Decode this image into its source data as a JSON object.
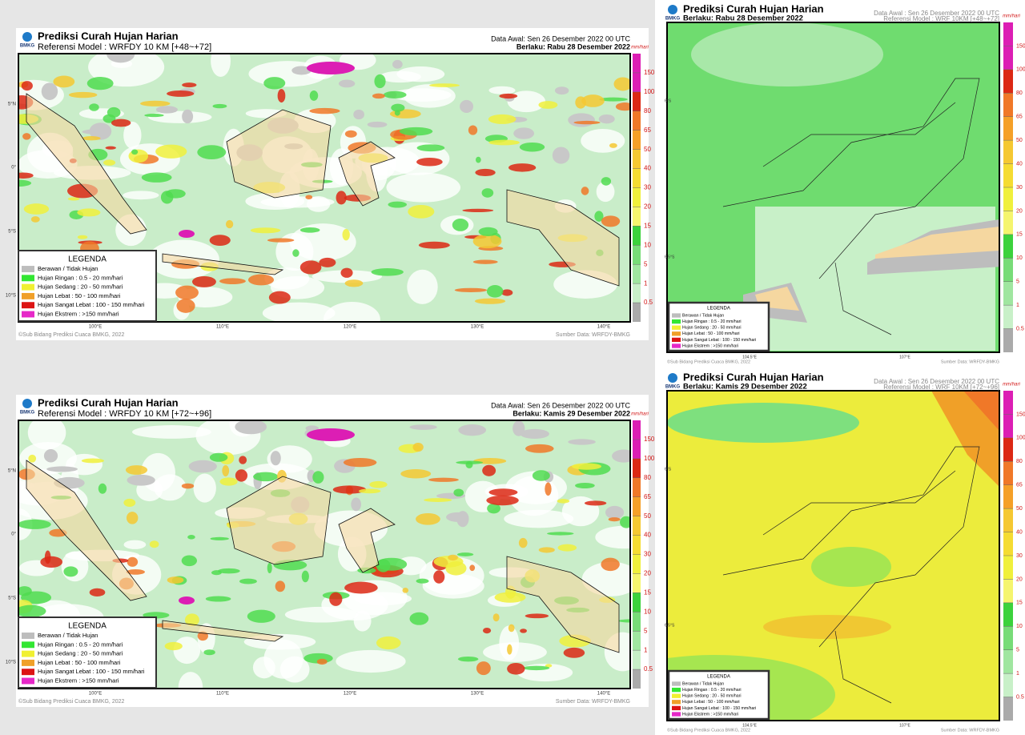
{
  "panels": [
    {
      "title": "Prediksi Curah Hujan Harian",
      "model": "Referensi Model : WRFDY 10 KM [+48~+72]",
      "start": "Data Awal: Sen 26 Desember 2022 00 UTC",
      "valid": "Berlaku: Rabu 28 Desember 2022",
      "logo": "BMKG",
      "unit": "mm/hari",
      "colorbar_ticks": [
        0.5,
        1,
        5,
        10,
        15,
        20,
        30,
        40,
        50,
        65,
        80,
        100,
        150
      ],
      "legend": {
        "title": "LEGENDA",
        "items": [
          "Berawan / Tidak Hujan",
          "Hujan Ringan : 0.5 - 20 mm/hari",
          "Hujan Sedang : 20 - 50 mm/hari",
          "Hujan Lebat : 50 - 100 mm/hari",
          "Hujan Sangat Lebat : 100 - 150 mm/hari",
          "Hujan Ekstrem : >150 mm/hari"
        ]
      },
      "lat_labels": [
        "5°N",
        "0°",
        "5°S",
        "10°S"
      ],
      "lon_labels": [
        "100°E",
        "110°E",
        "120°E",
        "130°E",
        "140°E"
      ],
      "credit": "©Sub Bidang Prediksi Cuaca BMKG, 2022",
      "source": "Sumber Data: WRFDY-BMKG"
    },
    {
      "title": "Prediksi Curah Hujan Harian",
      "model": "Referensi Model : WRFDY 10 KM [+72~+96]",
      "start": "Data Awal: Sen 26 Desember 2022 00 UTC",
      "valid": "Berlaku: Kamis 29 Desember 2022",
      "logo": "BMKG",
      "unit": "mm/hari",
      "colorbar_ticks": [
        0.5,
        1,
        5,
        10,
        15,
        20,
        30,
        40,
        50,
        65,
        80,
        100,
        150
      ],
      "legend": {
        "title": "LEGENDA",
        "items": [
          "Berawan / Tidak Hujan",
          "Hujan Ringan : 0.5 - 20 mm/hari",
          "Hujan Sedang : 20 - 50 mm/hari",
          "Hujan Lebat : 50 - 100 mm/hari",
          "Hujan Sangat Lebat : 100 - 150 mm/hari",
          "Hujan Ekstrem : >150 mm/hari"
        ]
      },
      "lat_labels": [
        "5°N",
        "0°",
        "5°S",
        "10°S"
      ],
      "lon_labels": [
        "100°E",
        "110°E",
        "120°E",
        "130°E",
        "140°E"
      ],
      "credit": "©Sub Bidang Prediksi Cuaca BMKG, 2022",
      "source": "Sumber Data: WRFDY-BMKG"
    },
    {
      "title": "Prediksi Curah Hujan Harian",
      "model": "Referensi Model : WRF 10KM [+48~+72]",
      "start": "Data Awal : Sen 26 Desember 2022 00 UTC",
      "valid": "Berlaku: Rabu 28 Desember 2022",
      "logo": "BMKG",
      "unit": "mm/hari",
      "colorbar_ticks": [
        0.5,
        1,
        5,
        10,
        15,
        20,
        30,
        40,
        50,
        65,
        80,
        100,
        150
      ],
      "legend": {
        "title": "LEGENDA",
        "items": [
          "Berawan / Tidak Hujan",
          "Hujan Ringan : 0.5 - 20 mm/hari",
          "Hujan Sedang : 20 - 50 mm/hari",
          "Hujan Lebat : 50 - 100 mm/hari",
          "Hujan Sangat Lebat : 100 - 150 mm/hari",
          "Hujan Ekstrem : >150 mm/hari"
        ]
      },
      "lat_labels": [
        "6°S",
        "6.5°S"
      ],
      "lon_labels": [
        "104.5°E",
        "107°E"
      ],
      "credit": "©Sub Bidang Prediksi Cuaca BMKG, 2022",
      "source": "Sumber Data: WRFDY-BMKG"
    },
    {
      "title": "Prediksi Curah Hujan Harian",
      "model": "Referensi Model : WRF 10KM [+72~+96]",
      "start": "Data Awal : Sen 26 Desember 2022 00 UTC",
      "valid": "Berlaku: Kamis 29 Desember 2022",
      "logo": "BMKG",
      "unit": "mm/hari",
      "colorbar_ticks": [
        0.5,
        1,
        5,
        10,
        15,
        20,
        30,
        40,
        50,
        65,
        80,
        100,
        150
      ],
      "legend": {
        "title": "LEGENDA",
        "items": [
          "Berawan / Tidak Hujan",
          "Hujan Ringan : 0.5 - 20 mm/hari",
          "Hujan Sedang : 20 - 50 mm/hari",
          "Hujan Lebat : 50 - 100 mm/hari",
          "Hujan Sangat Lebat : 100 - 150 mm/hari",
          "Hujan Ekstrem : >150 mm/hari"
        ]
      },
      "lat_labels": [
        "6°S",
        "6.5°S"
      ],
      "lon_labels": [
        "104.5°E",
        "107°E"
      ],
      "credit": "©Sub Bidang Prediksi Cuaca BMKG, 2022",
      "source": "Sumber Data: WRFDY-BMKG"
    }
  ]
}
